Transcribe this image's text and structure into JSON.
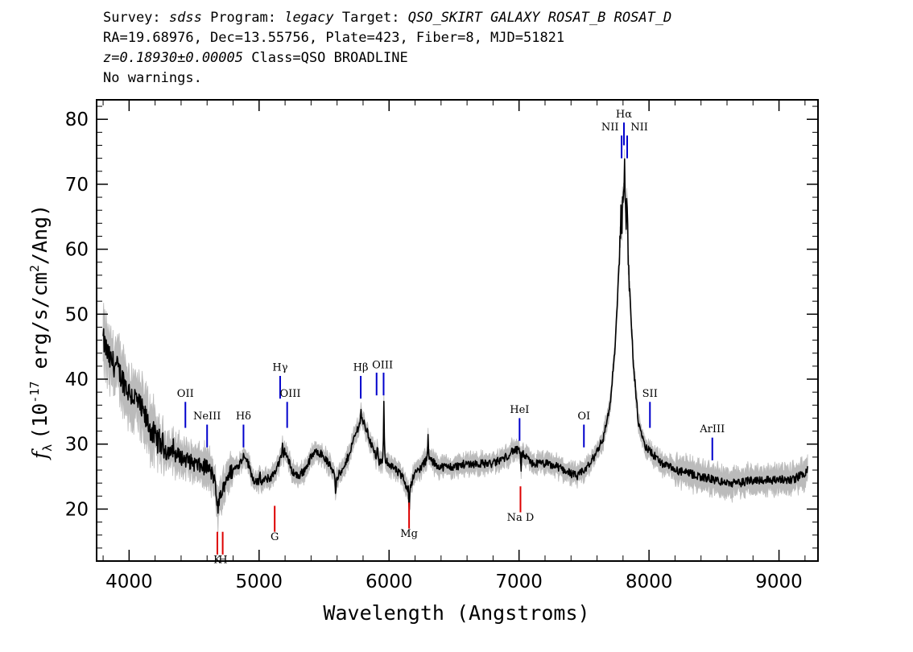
{
  "header": {
    "survey_label": "Survey: ",
    "survey": "sdss",
    "program_label": " Program: ",
    "program": "legacy",
    "target_label": " Target: ",
    "target": "QSO_SKIRT GALAXY ROSAT_B ROSAT_D",
    "line2": "RA=19.68976, Dec=13.55756, Plate=423, Fiber=8, MJD=51821",
    "redshift": "z=0.18930±0.00005",
    "class_text": " Class=QSO BROADLINE",
    "warnings": "No warnings."
  },
  "colors": {
    "spectrum": "#000000",
    "error": "#bbbbbb",
    "emission": "#0000cc",
    "absorption": "#dd0000"
  },
  "chart_data": {
    "type": "line",
    "xlabel": "Wavelength (Angstroms)",
    "ylabel_main": "f",
    "ylabel_sub": "λ",
    "ylabel_units_a": "(10",
    "ylabel_exp": "-17",
    "ylabel_units_b": " erg/s/cm",
    "ylabel_sq": "2",
    "ylabel_units_c": "/Ang)",
    "xlim": [
      3750,
      9300
    ],
    "ylim": [
      12,
      83
    ],
    "xticks": [
      4000,
      5000,
      6000,
      7000,
      8000,
      9000
    ],
    "xtick_labels": [
      "4000",
      "5000",
      "6000",
      "7000",
      "8000",
      "9000"
    ],
    "yticks": [
      20,
      30,
      40,
      50,
      60,
      70,
      80
    ],
    "ytick_labels": [
      "20",
      "30",
      "40",
      "50",
      "60",
      "70",
      "80"
    ],
    "spectrum_anchors": [
      [
        3800,
        46
      ],
      [
        3850,
        43
      ],
      [
        3900,
        42
      ],
      [
        3950,
        40
      ],
      [
        4000,
        38
      ],
      [
        4050,
        37
      ],
      [
        4100,
        35
      ],
      [
        4150,
        33
      ],
      [
        4200,
        31
      ],
      [
        4250,
        30
      ],
      [
        4300,
        29
      ],
      [
        4350,
        28.5
      ],
      [
        4400,
        28
      ],
      [
        4450,
        27.5
      ],
      [
        4500,
        27
      ],
      [
        4550,
        26.5
      ],
      [
        4600,
        26.5
      ],
      [
        4650,
        25
      ],
      [
        4680,
        21
      ],
      [
        4700,
        22
      ],
      [
        4750,
        25
      ],
      [
        4800,
        26
      ],
      [
        4850,
        27
      ],
      [
        4890,
        28.5
      ],
      [
        4950,
        25
      ],
      [
        5000,
        24
      ],
      [
        5050,
        24.5
      ],
      [
        5100,
        25
      ],
      [
        5150,
        27
      ],
      [
        5200,
        29
      ],
      [
        5250,
        26
      ],
      [
        5300,
        25
      ],
      [
        5350,
        26
      ],
      [
        5400,
        28
      ],
      [
        5450,
        29
      ],
      [
        5500,
        28
      ],
      [
        5550,
        26.5
      ],
      [
        5600,
        25
      ],
      [
        5650,
        26
      ],
      [
        5700,
        29
      ],
      [
        5750,
        32
      ],
      [
        5790,
        34
      ],
      [
        5830,
        32
      ],
      [
        5880,
        29
      ],
      [
        5930,
        27
      ],
      [
        5960,
        28
      ],
      [
        6000,
        27
      ],
      [
        6050,
        26
      ],
      [
        6100,
        25
      ],
      [
        6150,
        23
      ],
      [
        6200,
        25.5
      ],
      [
        6250,
        26.5
      ],
      [
        6300,
        28
      ],
      [
        6350,
        27
      ],
      [
        6400,
        26.5
      ],
      [
        6500,
        26.5
      ],
      [
        6600,
        27
      ],
      [
        6700,
        27
      ],
      [
        6800,
        27
      ],
      [
        6900,
        28
      ],
      [
        6950,
        29
      ],
      [
        7000,
        29
      ],
      [
        7050,
        28
      ],
      [
        7100,
        27
      ],
      [
        7200,
        27
      ],
      [
        7300,
        26.5
      ],
      [
        7400,
        25.5
      ],
      [
        7450,
        25
      ],
      [
        7500,
        26
      ],
      [
        7550,
        27
      ],
      [
        7600,
        29
      ],
      [
        7650,
        31
      ],
      [
        7700,
        36
      ],
      [
        7740,
        45
      ],
      [
        7770,
        58
      ],
      [
        7790,
        65
      ],
      [
        7810,
        68
      ],
      [
        7830,
        65
      ],
      [
        7850,
        55
      ],
      [
        7880,
        42
      ],
      [
        7920,
        33
      ],
      [
        7960,
        30
      ],
      [
        8000,
        29
      ],
      [
        8100,
        27
      ],
      [
        8200,
        26
      ],
      [
        8300,
        25.5
      ],
      [
        8400,
        25
      ],
      [
        8500,
        24.5
      ],
      [
        8600,
        24
      ],
      [
        8700,
        24
      ],
      [
        8800,
        24.5
      ],
      [
        8900,
        24.5
      ],
      [
        9000,
        24.5
      ],
      [
        9100,
        24.5
      ],
      [
        9200,
        25.5
      ],
      [
        9220,
        26
      ]
    ],
    "spikes": [
      [
        4340,
        1.5
      ],
      [
        4684,
        -2.5
      ],
      [
        4718,
        -2
      ],
      [
        4960,
        -1
      ],
      [
        5007,
        1.5
      ],
      [
        5180,
        1.5
      ],
      [
        5589,
        -3.5
      ],
      [
        5785,
        1.5
      ],
      [
        5910,
        2
      ],
      [
        5960,
        8
      ],
      [
        6155,
        -4
      ],
      [
        6300,
        3
      ],
      [
        7015,
        -3
      ],
      [
        7815,
        4
      ],
      [
        7838,
        1.5
      ]
    ],
    "emission_lines": [
      {
        "label": "OII",
        "x": 4433,
        "y0": 32.5,
        "y1": 36.5,
        "lx": 4433,
        "ly": 37.3,
        "color": "emission"
      },
      {
        "label": "NeIII",
        "x": 4600,
        "y0": 29.5,
        "y1": 33,
        "lx": 4600,
        "ly": 33.8,
        "color": "emission"
      },
      {
        "label": "Hδ",
        "x": 4880,
        "y0": 29.5,
        "y1": 33,
        "lx": 4880,
        "ly": 33.8,
        "color": "emission"
      },
      {
        "label": "Hγ",
        "x": 5162,
        "y0": 37,
        "y1": 40.5,
        "lx": 5162,
        "ly": 41.3,
        "color": "emission"
      },
      {
        "label": "OIII",
        "x": 5216,
        "y0": 32.5,
        "y1": 36.5,
        "lx": 5240,
        "ly": 37.3,
        "color": "emission"
      },
      {
        "label": "Hβ",
        "x": 5782,
        "y0": 37,
        "y1": 40.5,
        "lx": 5782,
        "ly": 41.3,
        "color": "emission"
      },
      {
        "label": "OIII",
        "x": 5904,
        "y0": 37.5,
        "y1": 41,
        "lx": 5950,
        "ly": 41.7,
        "color": "emission"
      },
      {
        "label": "",
        "x": 5958,
        "y0": 37.5,
        "y1": 41,
        "lx": 0,
        "ly": 0,
        "color": "emission"
      },
      {
        "label": "HeI",
        "x": 7004,
        "y0": 30.5,
        "y1": 34,
        "lx": 7004,
        "ly": 34.8,
        "color": "emission"
      },
      {
        "label": "OI",
        "x": 7499,
        "y0": 29.5,
        "y1": 33,
        "lx": 7499,
        "ly": 33.8,
        "color": "emission"
      },
      {
        "label": "Hα",
        "x": 7807,
        "y0": 76,
        "y1": 79.5,
        "lx": 7807,
        "ly": 80.3,
        "color": "emission"
      },
      {
        "label": "NII",
        "x": 7789,
        "y0": 74,
        "y1": 77.5,
        "lx": 7700,
        "ly": 78.3,
        "color": "emission"
      },
      {
        "label": "NII",
        "x": 7832,
        "y0": 74,
        "y1": 77.5,
        "lx": 7925,
        "ly": 78.3,
        "color": "emission"
      },
      {
        "label": "SII",
        "x": 8007,
        "y0": 32.5,
        "y1": 36.5,
        "lx": 8007,
        "ly": 37.3,
        "color": "emission"
      },
      {
        "label": "ArIII",
        "x": 8487,
        "y0": 27.5,
        "y1": 31,
        "lx": 8487,
        "ly": 31.8,
        "color": "emission"
      }
    ],
    "absorption_lines": [
      {
        "label": "K",
        "x": 4679,
        "y0": 13,
        "y1": 16.5,
        "lx": 4679,
        "ly": 11.7,
        "color": "absorption"
      },
      {
        "label": "H",
        "x": 4720,
        "y0": 13,
        "y1": 16.5,
        "lx": 4722,
        "ly": 11.7,
        "color": "absorption"
      },
      {
        "label": "G",
        "x": 5120,
        "y0": 16.5,
        "y1": 20.5,
        "lx": 5120,
        "ly": 15.2,
        "color": "absorption"
      },
      {
        "label": "Mg",
        "x": 6154,
        "y0": 17,
        "y1": 21,
        "lx": 6154,
        "ly": 15.7,
        "color": "absorption"
      },
      {
        "label": "Na D",
        "x": 7011,
        "y0": 19.5,
        "y1": 23.5,
        "lx": 7011,
        "ly": 18.2,
        "color": "absorption"
      }
    ]
  }
}
